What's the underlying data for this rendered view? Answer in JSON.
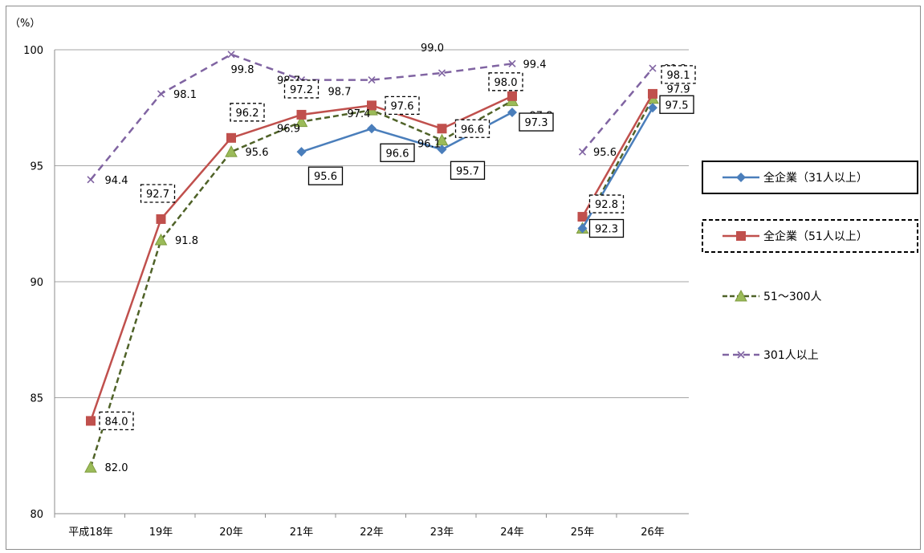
{
  "chart_data": {
    "type": "line",
    "ylabel": "（%）",
    "ylim": [
      80,
      100
    ],
    "yticks": [
      80,
      85,
      90,
      95,
      100
    ],
    "grid": "horizontal",
    "legend_position": "right",
    "categories": [
      "平成18年",
      "19年",
      "20年",
      "21年",
      "22年",
      "23年",
      "24年",
      "25年",
      "26年"
    ],
    "series": [
      {
        "name": "全企業（31人以上）",
        "color": "#4a7ebb",
        "style": "solid",
        "marker": "diamond",
        "legend_box": "solid",
        "values": [
          null,
          null,
          null,
          95.6,
          96.6,
          95.7,
          97.3,
          92.3,
          97.5
        ],
        "labels": [
          "",
          "",
          "",
          "95.6",
          "96.6",
          "95.7",
          "97.3",
          "92.3",
          "97.5"
        ],
        "label_boxed": true
      },
      {
        "name": "全企業（51人以上）",
        "color": "#c0504d",
        "style": "solid",
        "marker": "square",
        "legend_box": "dashed",
        "values": [
          84.0,
          92.7,
          96.2,
          97.2,
          97.6,
          96.6,
          98.0,
          92.8,
          98.1
        ],
        "labels": [
          "84.0",
          "92.7",
          "96.2",
          "97.2",
          "97.6",
          "96.6",
          "98.0",
          "92.8",
          "98.1"
        ],
        "label_boxed": true
      },
      {
        "name": "51～300人",
        "color": "#4f6228",
        "style": "dashed",
        "marker": "triangle",
        "legend_box": "none",
        "values": [
          82.0,
          91.8,
          95.6,
          96.9,
          97.4,
          96.1,
          97.8,
          92.3,
          97.9
        ],
        "labels": [
          "82.0",
          "91.8",
          "95.6",
          "96.9",
          "97.4",
          "96.1",
          "97.8",
          "92.3",
          "97.9"
        ],
        "label_boxed": false
      },
      {
        "name": "301人以上",
        "color": "#8064a2",
        "style": "dashed",
        "marker": "x",
        "legend_box": "none",
        "values": [
          94.4,
          98.1,
          99.8,
          98.7,
          98.7,
          99.0,
          99.4,
          95.6,
          99.2
        ],
        "labels": [
          "94.4",
          "98.1",
          "99.8",
          "98.7",
          "98.7",
          "99.0",
          "99.4",
          "95.6",
          "99.2"
        ],
        "label_boxed": false
      }
    ]
  }
}
